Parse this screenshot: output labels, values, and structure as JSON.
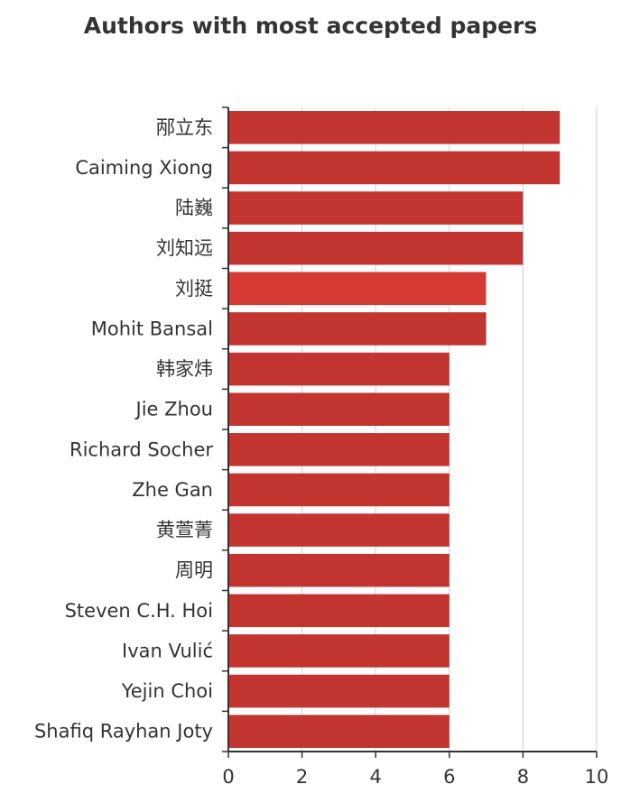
{
  "chart_data": {
    "type": "bar",
    "orientation": "horizontal",
    "title": "Authors with most accepted papers",
    "xlabel": "",
    "ylabel": "",
    "xlim": [
      0,
      10
    ],
    "x_ticks": [
      0,
      2,
      4,
      6,
      8,
      10
    ],
    "grid": true,
    "legend": "none",
    "categories": [
      "邴立东",
      "Caiming Xiong",
      "陆巍",
      "刘知远",
      "刘挺",
      "Mohit Bansal",
      "韩家炜",
      "Jie Zhou",
      "Richard Socher",
      "Zhe Gan",
      "黄萱菁",
      "周明",
      "Steven C.H. Hoi",
      "Ivan Vulić",
      "Yejin Choi",
      "Shafiq Rayhan Joty"
    ],
    "values": [
      9,
      9,
      8,
      8,
      7,
      7,
      6,
      6,
      6,
      6,
      6,
      6,
      6,
      6,
      6,
      6
    ],
    "bar_color": "#c23531",
    "highlight_color": "#d63a34",
    "highlight_category": "刘挺"
  }
}
